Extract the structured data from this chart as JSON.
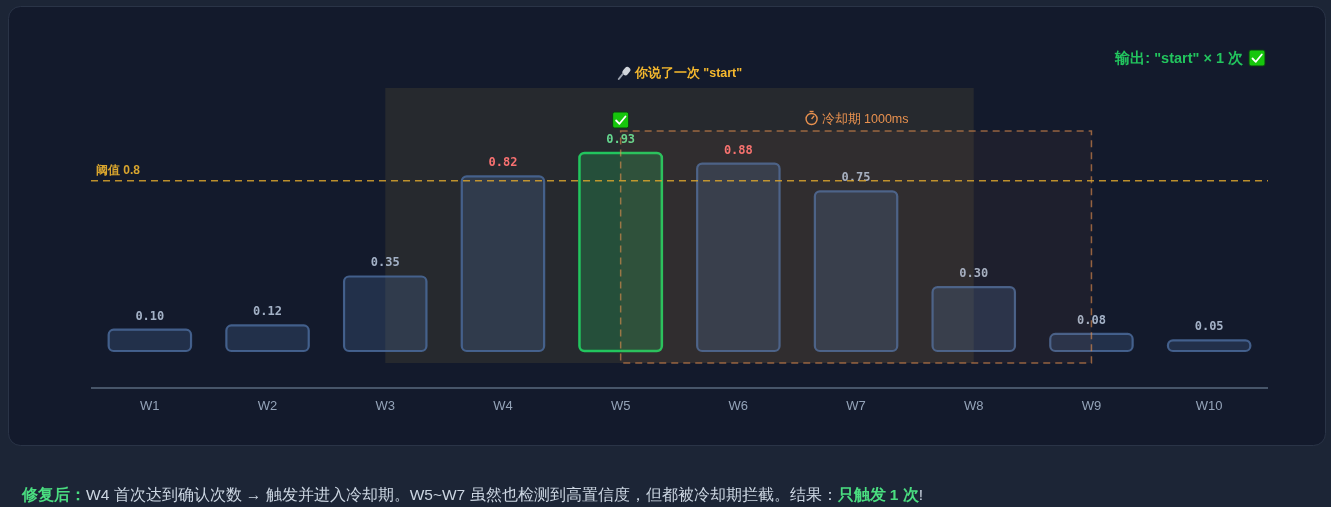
{
  "chart_data": {
    "type": "bar",
    "categories": [
      "W1",
      "W2",
      "W3",
      "W4",
      "W5",
      "W6",
      "W7",
      "W8",
      "W9",
      "W10"
    ],
    "values": [
      0.1,
      0.12,
      0.35,
      0.82,
      0.93,
      0.88,
      0.75,
      0.3,
      0.08,
      0.05
    ],
    "value_labels": [
      "0.10",
      "0.12",
      "0.35",
      "0.82",
      "0.93",
      "0.88",
      "0.75",
      "0.30",
      "0.08",
      "0.05"
    ],
    "colors": [
      "#4a6a9a",
      "#4a6a9a",
      "#4a6a9a",
      "#4a6a9a",
      "#22c55e",
      "#4a6a9a",
      "#4a6a9a",
      "#4a6a9a",
      "#4a6a9a",
      "#4a6a9a"
    ],
    "ref_lines": [
      {
        "axis": "y",
        "value": 0.8,
        "label": "阈值 0.8",
        "color": "#d9a52e",
        "line_style": "dashed"
      }
    ],
    "bands": [
      {
        "axis": "x",
        "from": "W3",
        "to": "W8",
        "label": "你说了一次 \"start\"",
        "color": "#26292e"
      },
      {
        "axis": "x",
        "from": "W5",
        "to": "W9",
        "label": "冷却期 1000ms",
        "color": "#e8914f"
      }
    ],
    "annotations": [
      "输出: \"start\" × 1 次",
      "修复后：",
      "W4 首次达到确认次数 → 触发并进入冷却期。W5~W7 虽然也检测到高置信度，但都被冷却期拦截。结果：",
      "只触发 1 次",
      "!"
    ]
  }
}
